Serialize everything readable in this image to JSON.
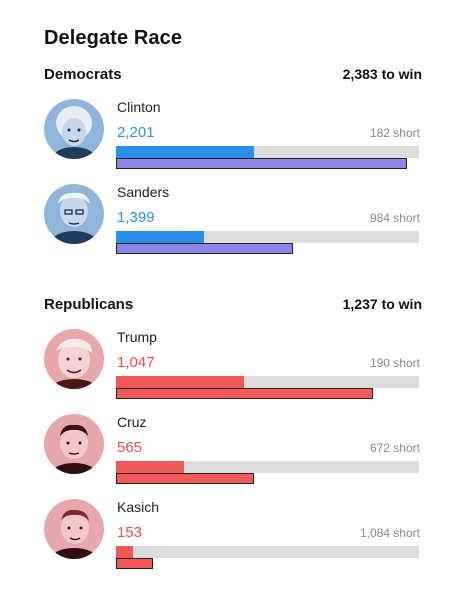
{
  "title": "Delegate Race",
  "colors": {
    "dem_accent": "#2a8fe6",
    "dem_outline": "#8a86e8",
    "rep_accent": "#f04a4a"
  },
  "democrats": {
    "label": "Democrats",
    "to_win": "2,383 to win",
    "candidates": [
      {
        "name": "Clinton",
        "delegates": "2,201",
        "short": "182 short",
        "progress_pct": 45.6,
        "outline_pct": 96.0
      },
      {
        "name": "Sanders",
        "delegates": "1,399",
        "short": "984 short",
        "progress_pct": 29.0,
        "outline_pct": 58.4
      }
    ]
  },
  "republicans": {
    "label": "Republicans",
    "to_win": "1,237 to win",
    "candidates": [
      {
        "name": "Trump",
        "delegates": "1,047",
        "short": "190 short",
        "progress_pct": 42.2,
        "outline_pct": 84.8
      },
      {
        "name": "Cruz",
        "delegates": "565",
        "short": "672 short",
        "progress_pct": 22.4,
        "outline_pct": 45.5
      },
      {
        "name": "Kasich",
        "delegates": "153",
        "short": "1,084 short",
        "progress_pct": 5.6,
        "outline_pct": 12.2
      }
    ]
  }
}
